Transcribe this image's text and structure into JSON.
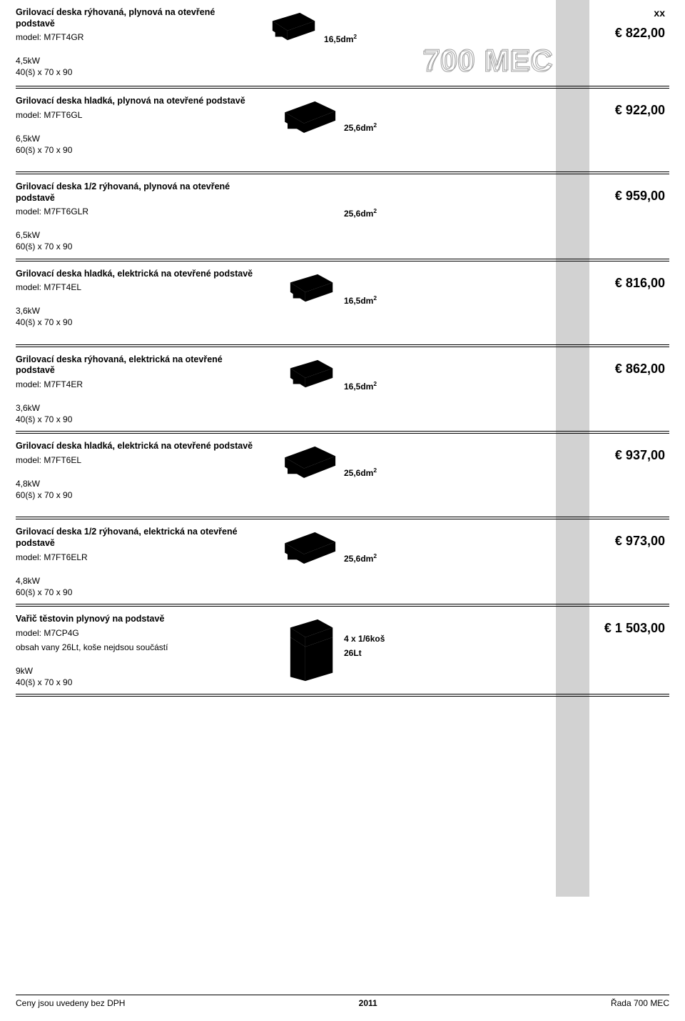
{
  "header_mark": "xx",
  "logo_text": "700 MEC",
  "items": [
    {
      "title": "Grilovací deska rýhovaná, plynová na otevřené podstavě",
      "model": "model: M7FT4GR",
      "power": "4,5kW",
      "dims": "40(š) x 70 x 90",
      "spec1": "16,5dm",
      "spec2": "",
      "price": "€ 822,00",
      "img": "ribbed-narrow"
    },
    {
      "title": "Grilovací deska hladká, plynová na otevřené podstavě",
      "model": "model: M7FT6GL",
      "power": "6,5kW",
      "dims": "60(š) x 70 x 90",
      "spec1": "25,6dm",
      "spec2": "",
      "price": "€ 922,00",
      "img": "flat-wide"
    },
    {
      "title": "Grilovací deska 1/2 rýhovaná, plynová na otevřené podstavě",
      "model": "model: M7FT6GLR",
      "power": "6,5kW",
      "dims": "60(š) x 70 x 90",
      "spec1": "25,6dm",
      "spec2": "",
      "price": "€ 959,00",
      "img": "none"
    },
    {
      "title": "Grilovací deska hladká, elektrická na otevřené podstavě",
      "model": "model: M7FT4EL",
      "power": "3,6kW",
      "dims": "40(š) x 70 x 90",
      "spec1": "16,5dm",
      "spec2": "",
      "price": "€ 816,00",
      "img": "flat-narrow"
    },
    {
      "title": "Grilovací deska rýhovaná, elektrická na otevřené podstavě",
      "model": "model: M7FT4ER",
      "power": "3,6kW",
      "dims": "40(š) x 70 x 90",
      "spec1": "16,5dm",
      "spec2": "",
      "price": "€ 862,00",
      "img": "ribbed-narrow"
    },
    {
      "title": "Grilovací deska hladká, elektrická na otevřené podstavě",
      "model": "model: M7FT6EL",
      "power": "4,8kW",
      "dims": "60(š) x 70 x 90",
      "spec1": "25,6dm",
      "spec2": "",
      "price": "€ 937,00",
      "img": "flat-wide"
    },
    {
      "title": "Grilovací deska 1/2 rýhovaná, elektrická na otevřené podstavě",
      "model": "model: M7FT6ELR",
      "power": "4,8kW",
      "dims": "60(š) x 70 x 90",
      "spec1": "25,6dm",
      "spec2": "",
      "price": "€ 973,00",
      "img": "half-wide"
    },
    {
      "title": "Vařič těstovin plynový na podstavě",
      "model": "model: M7CP4G",
      "note": "obsah vany 26Lt, koše nejdsou součástí",
      "power": "9kW",
      "dims": "40(š) x 70 x 90",
      "spec1": "4 x 1/6koš",
      "spec2": "26Lt",
      "price": "€ 1 503,00",
      "img": "pasta"
    }
  ],
  "footer": {
    "left": "Ceny jsou uvedeny bez DPH",
    "mid": "2011",
    "right": "Řada 700 MEC"
  }
}
